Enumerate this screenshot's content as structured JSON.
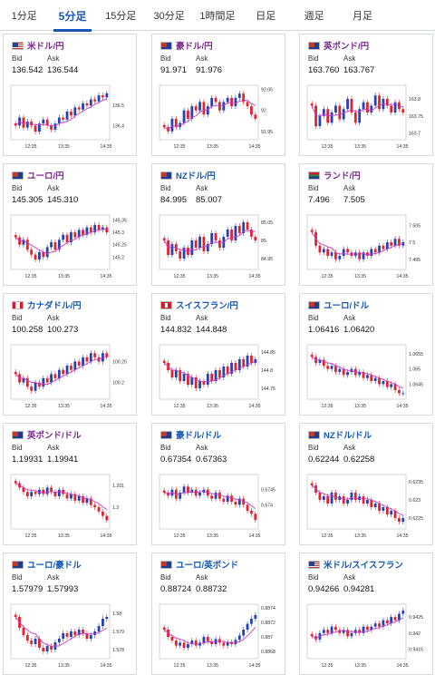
{
  "tabs": [
    {
      "label": "1分足",
      "active": false
    },
    {
      "label": "5分足",
      "active": true
    },
    {
      "label": "15分足",
      "active": false
    },
    {
      "label": "30分足",
      "active": false
    },
    {
      "label": "1時間足",
      "active": false
    },
    {
      "label": "日足",
      "active": false
    },
    {
      "label": "週足",
      "active": false
    },
    {
      "label": "月足",
      "active": false
    }
  ],
  "labels": {
    "bid": "Bid",
    "ask": "Ask"
  },
  "colors": {
    "up": "#2442b5",
    "down": "#e0242f",
    "ma": "#cc38c6",
    "link_purple": "#7b2a8c",
    "link_blue": "#1559b5"
  },
  "cards": [
    {
      "name": "米ドル/円",
      "flag": "us-jp-flag-icon",
      "name_color": "purple",
      "bid": "136.542",
      "ask": "136.544",
      "chart_data": {
        "type": "candlestick",
        "x_ticks": [
          "12:35",
          "13:35",
          "14:35"
        ],
        "y_ticks": [
          "136.5",
          "136.4"
        ],
        "ylim": [
          136.33,
          136.6
        ],
        "closes": [
          136.4,
          136.44,
          136.39,
          136.42,
          136.4,
          136.37,
          136.41,
          136.43,
          136.4,
          136.38,
          136.41,
          136.44,
          136.43,
          136.47,
          136.45,
          136.49,
          136.48,
          136.51,
          136.5,
          136.53,
          136.52,
          136.55,
          136.54,
          136.56
        ]
      }
    },
    {
      "name": "豪ドル/円",
      "flag": "au-jp-flag-icon",
      "name_color": "purple",
      "bid": "91.971",
      "ask": "91.976",
      "chart_data": {
        "type": "candlestick",
        "x_ticks": [
          "12:35",
          "13:35",
          "14:35"
        ],
        "y_ticks": [
          "92.05",
          "92",
          "91.95"
        ],
        "ylim": [
          91.93,
          92.06
        ],
        "closes": [
          91.96,
          91.95,
          91.98,
          91.96,
          91.97,
          92.0,
          91.98,
          92.01,
          92.0,
          92.02,
          91.99,
          92.01,
          92.03,
          92.02,
          92.0,
          92.02,
          92.03,
          92.01,
          92.03,
          92.04,
          92.02,
          92.01,
          91.99,
          91.98
        ]
      }
    },
    {
      "name": "英ポンド/円",
      "flag": "gb-jp-flag-icon",
      "name_color": "purple",
      "bid": "163.760",
      "ask": "163.767",
      "chart_data": {
        "type": "candlestick",
        "x_ticks": [
          "12:35",
          "13:35",
          "14:35"
        ],
        "y_ticks": [
          "163.8",
          "163.75",
          "163.7"
        ],
        "ylim": [
          163.68,
          163.84
        ],
        "closes": [
          163.78,
          163.72,
          163.75,
          163.77,
          163.73,
          163.76,
          163.78,
          163.74,
          163.77,
          163.8,
          163.76,
          163.73,
          163.77,
          163.79,
          163.76,
          163.78,
          163.81,
          163.77,
          163.8,
          163.78,
          163.76,
          163.79,
          163.77,
          163.76
        ]
      }
    },
    {
      "name": "ユーロ/円",
      "flag": "eu-jp-flag-icon",
      "name_color": "purple",
      "bid": "145.305",
      "ask": "145.310",
      "chart_data": {
        "type": "candlestick",
        "x_ticks": [
          "12:35",
          "13:35",
          "14:35"
        ],
        "y_ticks": [
          "145.35",
          "145.3",
          "145.25",
          "145.2"
        ],
        "ylim": [
          145.15,
          145.37
        ],
        "closes": [
          145.28,
          145.25,
          145.27,
          145.23,
          145.21,
          145.19,
          145.22,
          145.2,
          145.24,
          145.26,
          145.23,
          145.27,
          145.29,
          145.26,
          145.3,
          145.28,
          145.31,
          145.29,
          145.32,
          145.3,
          145.33,
          145.31,
          145.32,
          145.3
        ]
      }
    },
    {
      "name": "NZドル/円",
      "flag": "nz-jp-flag-icon",
      "name_color": "blue",
      "bid": "84.995",
      "ask": "85.007",
      "chart_data": {
        "type": "candlestick",
        "x_ticks": [
          "12:35",
          "13:35",
          "14:35"
        ],
        "y_ticks": [
          "85.05",
          "85",
          "84.95"
        ],
        "ylim": [
          84.92,
          85.07
        ],
        "closes": [
          85.0,
          84.96,
          84.99,
          84.97,
          84.95,
          84.98,
          84.96,
          85.0,
          84.98,
          85.01,
          84.97,
          84.99,
          85.02,
          85.0,
          84.98,
          85.01,
          85.03,
          85.0,
          85.04,
          85.02,
          85.05,
          85.03,
          85.01,
          85.0
        ]
      }
    },
    {
      "name": "ランド/円",
      "flag": "za-jp-flag-icon",
      "name_color": "purple",
      "bid": "7.496",
      "ask": "7.505",
      "chart_data": {
        "type": "candlestick",
        "x_ticks": [
          "12:35",
          "13:35",
          "14:35"
        ],
        "y_ticks": [
          "7.505",
          "7.5",
          "7.495"
        ],
        "ylim": [
          7.492,
          7.508
        ],
        "closes": [
          7.503,
          7.499,
          7.497,
          7.498,
          7.496,
          7.497,
          7.495,
          7.496,
          7.498,
          7.497,
          7.496,
          7.497,
          7.495,
          7.497,
          7.496,
          7.498,
          7.497,
          7.499,
          7.498,
          7.5,
          7.499,
          7.501,
          7.499,
          7.5
        ]
      }
    },
    {
      "name": "カナダドル/円",
      "flag": "ca-jp-flag-icon",
      "name_color": "blue",
      "bid": "100.258",
      "ask": "100.273",
      "chart_data": {
        "type": "candlestick",
        "x_ticks": [
          "12:35",
          "13:35",
          "14:35"
        ],
        "y_ticks": [
          "100.25",
          "100.2"
        ],
        "ylim": [
          100.16,
          100.29
        ],
        "closes": [
          100.22,
          100.2,
          100.21,
          100.19,
          100.18,
          100.2,
          100.19,
          100.21,
          100.2,
          100.22,
          100.21,
          100.23,
          100.22,
          100.24,
          100.23,
          100.25,
          100.24,
          100.26,
          100.25,
          100.27,
          100.26,
          100.25,
          100.27,
          100.26
        ]
      }
    },
    {
      "name": "スイスフラン/円",
      "flag": "ch-jp-flag-icon",
      "name_color": "blue",
      "bid": "144.832",
      "ask": "144.848",
      "chart_data": {
        "type": "candlestick",
        "x_ticks": [
          "12:35",
          "13:35",
          "14:35"
        ],
        "y_ticks": [
          "144.85",
          "144.8",
          "144.75"
        ],
        "ylim": [
          144.72,
          144.87
        ],
        "closes": [
          144.82,
          144.8,
          144.78,
          144.8,
          144.77,
          144.79,
          144.76,
          144.78,
          144.75,
          144.77,
          144.76,
          144.79,
          144.77,
          144.8,
          144.78,
          144.81,
          144.79,
          144.82,
          144.8,
          144.83,
          144.81,
          144.84,
          144.82,
          144.83
        ]
      }
    },
    {
      "name": "ユーロ/ドル",
      "flag": "eu-us-flag-icon",
      "name_color": "blue",
      "bid": "1.06416",
      "ask": "1.06420",
      "chart_data": {
        "type": "candlestick",
        "x_ticks": [
          "12:35",
          "13:35",
          "14:35"
        ],
        "y_ticks": [
          "1.0655",
          "1.065",
          "1.0645"
        ],
        "ylim": [
          1.064,
          1.0658
        ],
        "closes": [
          1.0654,
          1.0652,
          1.0653,
          1.0651,
          1.065,
          1.0651,
          1.0649,
          1.065,
          1.0648,
          1.0649,
          1.065,
          1.0648,
          1.0649,
          1.0647,
          1.0648,
          1.0646,
          1.0647,
          1.0645,
          1.0646,
          1.0644,
          1.0645,
          1.0643,
          1.0642,
          1.0642
        ]
      }
    },
    {
      "name": "英ポンド/ドル",
      "flag": "gb-us-flag-icon",
      "name_color": "purple",
      "bid": "1.19931",
      "ask": "1.19941",
      "chart_data": {
        "type": "candlestick",
        "x_ticks": [
          "12:35",
          "13:35",
          "14:35"
        ],
        "y_ticks": [
          "1.201",
          "1.2"
        ],
        "ylim": [
          1.199,
          1.2015
        ],
        "closes": [
          1.2011,
          1.2009,
          1.2007,
          1.2005,
          1.2007,
          1.2006,
          1.2008,
          1.2006,
          1.2009,
          1.2007,
          1.2005,
          1.2008,
          1.2006,
          1.2004,
          1.2006,
          1.2003,
          1.2005,
          1.2002,
          1.2004,
          1.2001,
          1.2,
          1.1998,
          1.1996,
          1.1994
        ]
      }
    },
    {
      "name": "豪ドル/ドル",
      "flag": "au-us-flag-icon",
      "name_color": "blue",
      "bid": "0.67354",
      "ask": "0.67363",
      "chart_data": {
        "type": "candlestick",
        "x_ticks": [
          "12:35",
          "13:35",
          "14:35"
        ],
        "y_ticks": [
          "0.6745",
          "0.674"
        ],
        "ylim": [
          0.6732,
          0.675
        ],
        "closes": [
          0.6744,
          0.6743,
          0.6745,
          0.6742,
          0.6744,
          0.6746,
          0.6744,
          0.6745,
          0.6743,
          0.6744,
          0.6745,
          0.6743,
          0.6742,
          0.6744,
          0.6742,
          0.6741,
          0.6743,
          0.6741,
          0.674,
          0.6742,
          0.674,
          0.6738,
          0.6737,
          0.6735
        ]
      }
    },
    {
      "name": "NZドル/ドル",
      "flag": "nz-us-flag-icon",
      "name_color": "blue",
      "bid": "0.62244",
      "ask": "0.62258",
      "chart_data": {
        "type": "candlestick",
        "x_ticks": [
          "12:35",
          "13:35",
          "14:35"
        ],
        "y_ticks": [
          "0.6235",
          "0.623",
          "0.6225"
        ],
        "ylim": [
          0.6222,
          0.6237
        ],
        "closes": [
          0.6234,
          0.6232,
          0.623,
          0.6231,
          0.6229,
          0.6232,
          0.623,
          0.6231,
          0.6229,
          0.623,
          0.6232,
          0.623,
          0.6231,
          0.6229,
          0.623,
          0.6228,
          0.6229,
          0.6227,
          0.6228,
          0.6226,
          0.6227,
          0.6225,
          0.6224,
          0.6225
        ]
      }
    },
    {
      "name": "ユーロ/豪ドル",
      "flag": "eu-au-flag-icon",
      "name_color": "blue",
      "bid": "1.57979",
      "ask": "1.57993",
      "chart_data": {
        "type": "candlestick",
        "x_ticks": [
          "12:35",
          "13:35",
          "14:35"
        ],
        "y_ticks": [
          "1.58",
          "1.579",
          "1.578"
        ],
        "ylim": [
          1.5775,
          1.5805
        ],
        "closes": [
          1.5798,
          1.5792,
          1.5788,
          1.5785,
          1.5783,
          1.5786,
          1.5781,
          1.5779,
          1.5782,
          1.578,
          1.5784,
          1.5786,
          1.5789,
          1.5787,
          1.579,
          1.5788,
          1.5791,
          1.5789,
          1.5786,
          1.5788,
          1.579,
          1.5793,
          1.5797,
          1.5798
        ]
      }
    },
    {
      "name": "ユーロ/英ポンド",
      "flag": "eu-gb-flag-icon",
      "name_color": "blue",
      "bid": "0.88724",
      "ask": "0.88732",
      "chart_data": {
        "type": "candlestick",
        "x_ticks": [
          "12:35",
          "13:35",
          "14:35"
        ],
        "y_ticks": [
          "0.8874",
          "0.8872",
          "0.887",
          "0.8868"
        ],
        "ylim": [
          0.8867,
          0.88745
        ],
        "closes": [
          0.8871,
          0.887,
          0.88695,
          0.88688,
          0.88692,
          0.88685,
          0.8869,
          0.88695,
          0.88688,
          0.88692,
          0.887,
          0.88694,
          0.8869,
          0.88697,
          0.88692,
          0.88688,
          0.88693,
          0.8869,
          0.88696,
          0.88702,
          0.8871,
          0.88718,
          0.88725,
          0.8873
        ]
      }
    },
    {
      "name": "米ドル/スイスフラン",
      "flag": "us-ch-flag-icon",
      "name_color": "blue",
      "bid": "0.94266",
      "ask": "0.94281",
      "chart_data": {
        "type": "candlestick",
        "x_ticks": [
          "12:35",
          "13:35",
          "14:35"
        ],
        "y_ticks": [
          "0.9425",
          "0.942",
          "0.9415"
        ],
        "ylim": [
          0.9412,
          0.9429
        ],
        "closes": [
          0.9419,
          0.9418,
          0.942,
          0.9421,
          0.942,
          0.9422,
          0.9421,
          0.942,
          0.9421,
          0.9419,
          0.942,
          0.9421,
          0.942,
          0.9422,
          0.9421,
          0.9422,
          0.9423,
          0.9422,
          0.9424,
          0.9423,
          0.9425,
          0.9424,
          0.9426,
          0.9427
        ]
      }
    }
  ]
}
